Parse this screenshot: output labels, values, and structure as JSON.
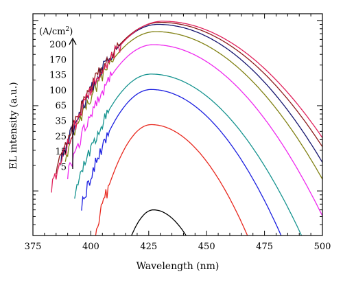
{
  "chart_data": {
    "type": "line",
    "xlabel": "Wavelength (nm)",
    "ylabel": "EL intensity (a.u.)",
    "xlim": [
      375,
      500
    ],
    "x_ticks": [
      375,
      400,
      425,
      450,
      475,
      500
    ],
    "y_scale": "log",
    "ylim": [
      0.003,
      1.2
    ],
    "y_major_ticks": [
      0.01,
      0.1,
      1
    ],
    "grid": false,
    "legend": {
      "title": "(A/cm²)",
      "title_base": "(A/cm",
      "title_sup": "2",
      "title_close": ")",
      "entries": [
        "200",
        "170",
        "135",
        "100",
        "65",
        "35",
        "25",
        "15",
        "5"
      ],
      "placement": "left",
      "arrow": "up"
    },
    "series": [
      {
        "current": "5",
        "color": "#000000",
        "peak_x": 427,
        "peak_y": 0.006,
        "sigma_l": 8,
        "sigma_r": 12,
        "start_x": 415
      },
      {
        "current": "15",
        "color": "#e8281e",
        "peak_x": 426,
        "peak_y": 0.06,
        "sigma_l": 10,
        "sigma_r": 17,
        "start_x": 402
      },
      {
        "current": "25",
        "color": "#1a1ee0",
        "peak_x": 426,
        "peak_y": 0.155,
        "sigma_l": 12,
        "sigma_r": 20,
        "start_x": 396
      },
      {
        "current": "35",
        "color": "#15938f",
        "peak_x": 426,
        "peak_y": 0.235,
        "sigma_l": 13,
        "sigma_r": 22,
        "start_x": 393
      },
      {
        "current": "65",
        "color": "#ee28ee",
        "peak_x": 427,
        "peak_y": 0.52,
        "sigma_l": 14,
        "sigma_r": 24,
        "start_x": 390
      },
      {
        "current": "100",
        "color": "#808012",
        "peak_x": 428,
        "peak_y": 0.74,
        "sigma_l": 15,
        "sigma_r": 25.5,
        "start_x": 389
      },
      {
        "current": "135",
        "color": "#14146e",
        "peak_x": 429,
        "peak_y": 0.9,
        "sigma_l": 15.5,
        "sigma_r": 26,
        "start_x": 387
      },
      {
        "current": "170",
        "color": "#8c1a1a",
        "peak_x": 430,
        "peak_y": 0.95,
        "sigma_l": 16,
        "sigma_r": 27,
        "start_x": 385
      },
      {
        "current": "200",
        "color": "#e0205a",
        "peak_x": 431,
        "peak_y": 0.98,
        "sigma_l": 16,
        "sigma_r": 27.5,
        "start_x": 383
      }
    ]
  }
}
